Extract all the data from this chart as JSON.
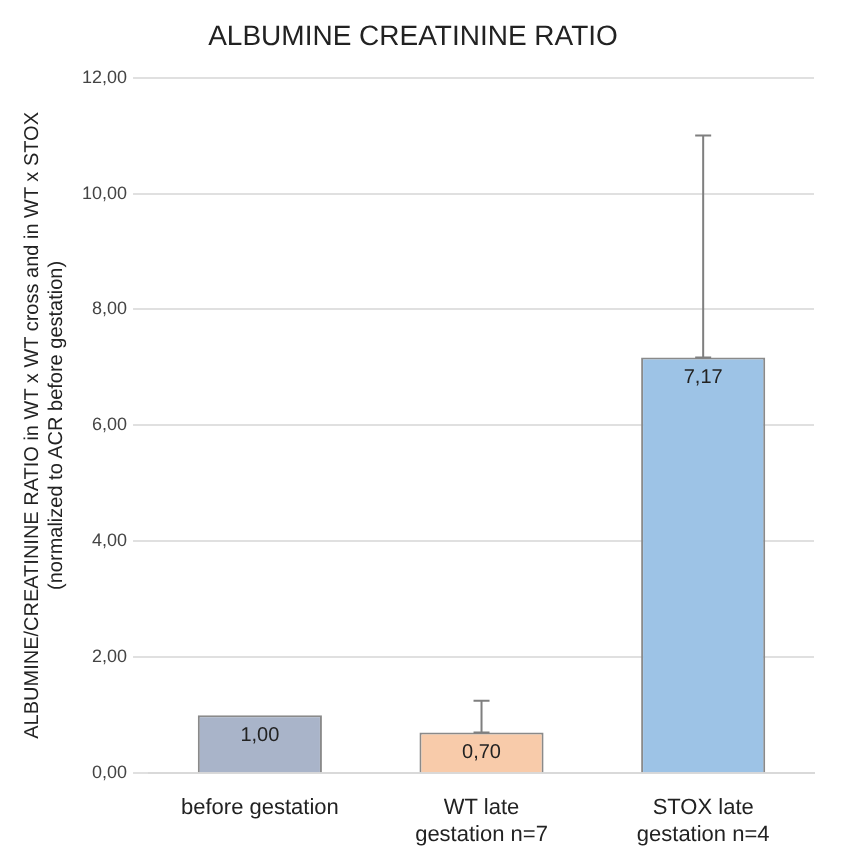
{
  "chart_data": {
    "type": "bar",
    "title": "ALBUMINE CREATININE RATIO",
    "ylabel": "ALBUMINE/CREATININE RATIO in WT x WT cross and in WT x STOX\n(normalized to ACR before gestation)",
    "categories": [
      "before gestation",
      "WT late gestation n=7",
      "STOX late gestation n=4"
    ],
    "values": [
      1.0,
      0.7,
      7.17
    ],
    "colors": [
      "#a9b4c9",
      "#f8cbaa",
      "#9dc3e6"
    ],
    "errors": [
      null,
      [
        0.7,
        1.25
      ],
      [
        7.17,
        11.0
      ]
    ],
    "value_labels": [
      "1,00",
      "0,70",
      "7,17"
    ],
    "ylim": [
      0,
      12
    ],
    "yticks": [
      {
        "value": 0,
        "label": "0,00"
      },
      {
        "value": 2,
        "label": "2,00"
      },
      {
        "value": 4,
        "label": "4,00"
      },
      {
        "value": 6,
        "label": "6,00"
      },
      {
        "value": 8,
        "label": "8,00"
      },
      {
        "value": 10,
        "label": "10,00"
      },
      {
        "value": 12,
        "label": "12,00"
      }
    ],
    "grid": "y",
    "legend": false
  }
}
